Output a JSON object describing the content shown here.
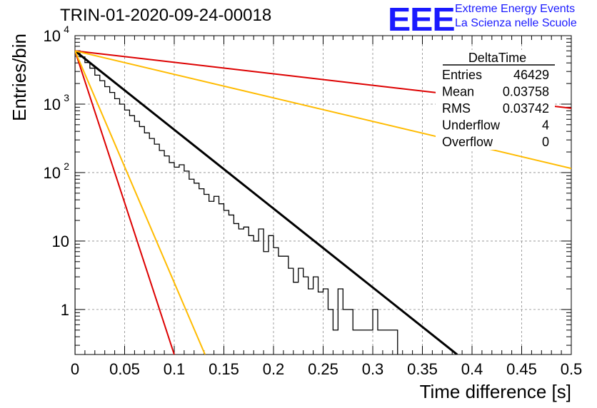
{
  "title": "TRIN-01-2020-09-24-00018",
  "logo": {
    "text": "EEE",
    "line1": "Extreme Energy Events",
    "line2": "La Scienza nelle Scuole",
    "color": "#1a1aff"
  },
  "stats": {
    "name": "DeltaTime",
    "rows": [
      {
        "label": "Entries",
        "value": "46429"
      },
      {
        "label": "Mean",
        "value": "0.03758"
      },
      {
        "label": "RMS",
        "value": "0.03742"
      },
      {
        "label": "Underflow",
        "value": "4"
      },
      {
        "label": "Overflow",
        "value": "0"
      }
    ]
  },
  "chart_data": {
    "type": "histogram",
    "xlabel": "Time difference [s]",
    "ylabel": "Entries/bin",
    "xlim": [
      0,
      0.5
    ],
    "ylim": [
      0.22,
      10000
    ],
    "ylog": true,
    "grid": true,
    "bin_width": 0.005,
    "x_ticks": [
      "0",
      "0.05",
      "0.1",
      "0.15",
      "0.2",
      "0.25",
      "0.3",
      "0.35",
      "0.4",
      "0.45",
      "0.5"
    ],
    "y_ticks": [
      {
        "value": 1,
        "label": "1"
      },
      {
        "value": 10,
        "label": "10"
      },
      {
        "value": 100,
        "label": "10",
        "exp": "2"
      },
      {
        "value": 1000,
        "label": "10",
        "exp": "3"
      },
      {
        "value": 10000,
        "label": "10",
        "exp": "4"
      }
    ],
    "bin_counts": [
      6000,
      4900,
      4050,
      3350,
      2650,
      2200,
      1800,
      1480,
      1200,
      1000,
      820,
      680,
      560,
      470,
      380,
      315,
      260,
      210,
      175,
      140,
      120,
      130,
      105,
      80,
      70,
      58,
      48,
      38,
      45,
      35,
      28,
      24,
      18,
      15,
      16,
      12,
      10,
      15,
      7,
      12,
      8,
      6,
      6,
      4,
      2.5,
      4,
      3,
      2,
      3,
      1.8,
      2,
      1,
      0.5,
      2,
      1,
      1,
      0.5,
      0.5,
      0.5,
      0.5,
      1,
      0.5,
      0.5,
      0.5,
      0.5,
      0,
      0,
      0,
      0,
      0,
      0,
      0,
      0,
      0,
      0,
      0,
      0,
      0,
      0,
      0,
      0,
      0,
      0,
      0,
      0,
      0,
      0,
      0,
      0,
      0,
      0,
      0,
      0,
      0,
      0,
      0,
      0,
      0,
      0,
      0
    ],
    "series": [
      {
        "kind": "fit",
        "color": "#000000",
        "x": [
          0,
          0.385
        ],
        "y": [
          6000,
          0.22
        ]
      },
      {
        "kind": "line",
        "color": "#dd0000",
        "x": [
          0,
          0.5
        ],
        "y": [
          6000,
          870
        ]
      },
      {
        "kind": "line",
        "color": "#ffbb00",
        "x": [
          0,
          0.5
        ],
        "y": [
          6000,
          115
        ]
      },
      {
        "kind": "line",
        "color": "#dd0000",
        "x": [
          0,
          0.1
        ],
        "y": [
          6000,
          0.22
        ]
      },
      {
        "kind": "line",
        "color": "#ffbb00",
        "x": [
          0,
          0.131
        ],
        "y": [
          6000,
          0.22
        ]
      }
    ]
  }
}
